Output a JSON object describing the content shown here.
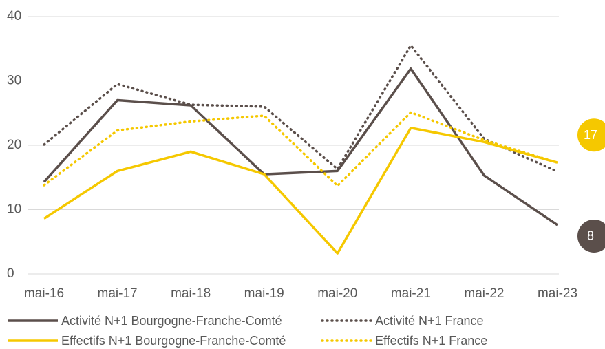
{
  "chart_data": {
    "type": "line",
    "categories": [
      "mai-16",
      "mai-17",
      "mai-18",
      "mai-19",
      "mai-20",
      "mai-21",
      "mai-22",
      "mai-23"
    ],
    "series": [
      {
        "name": "Activité N+1 Bourgogne-Franche-Comté",
        "color": "#5b4f4b",
        "dash": false,
        "values": [
          14.3,
          27.0,
          26.2,
          15.5,
          16.0,
          31.9,
          15.3,
          7.6
        ],
        "value_labels": [
          null,
          null,
          null,
          null,
          null,
          null,
          null,
          "8"
        ]
      },
      {
        "name": "Activité N+1 France",
        "color": "#5b4f4b",
        "dash": true,
        "values": [
          20.1,
          29.5,
          26.3,
          26.0,
          16.3,
          35.5,
          21.0,
          15.9
        ]
      },
      {
        "name": "Effectifs N+1 Bourgogne-Franche-Comté",
        "color": "#f5c800",
        "dash": false,
        "values": [
          8.6,
          16.0,
          19.0,
          15.5,
          3.2,
          22.7,
          20.5,
          17.3
        ],
        "value_labels": [
          null,
          null,
          null,
          null,
          null,
          null,
          null,
          "17"
        ]
      },
      {
        "name": "Effectifs N+1 France",
        "color": "#f5c800",
        "dash": true,
        "values": [
          13.8,
          22.3,
          23.7,
          24.6,
          13.7,
          25.1,
          20.8,
          17.3
        ]
      }
    ],
    "ylim": [
      0,
      40
    ],
    "yticks": [
      0,
      10,
      20,
      30,
      40
    ],
    "grid": true
  }
}
